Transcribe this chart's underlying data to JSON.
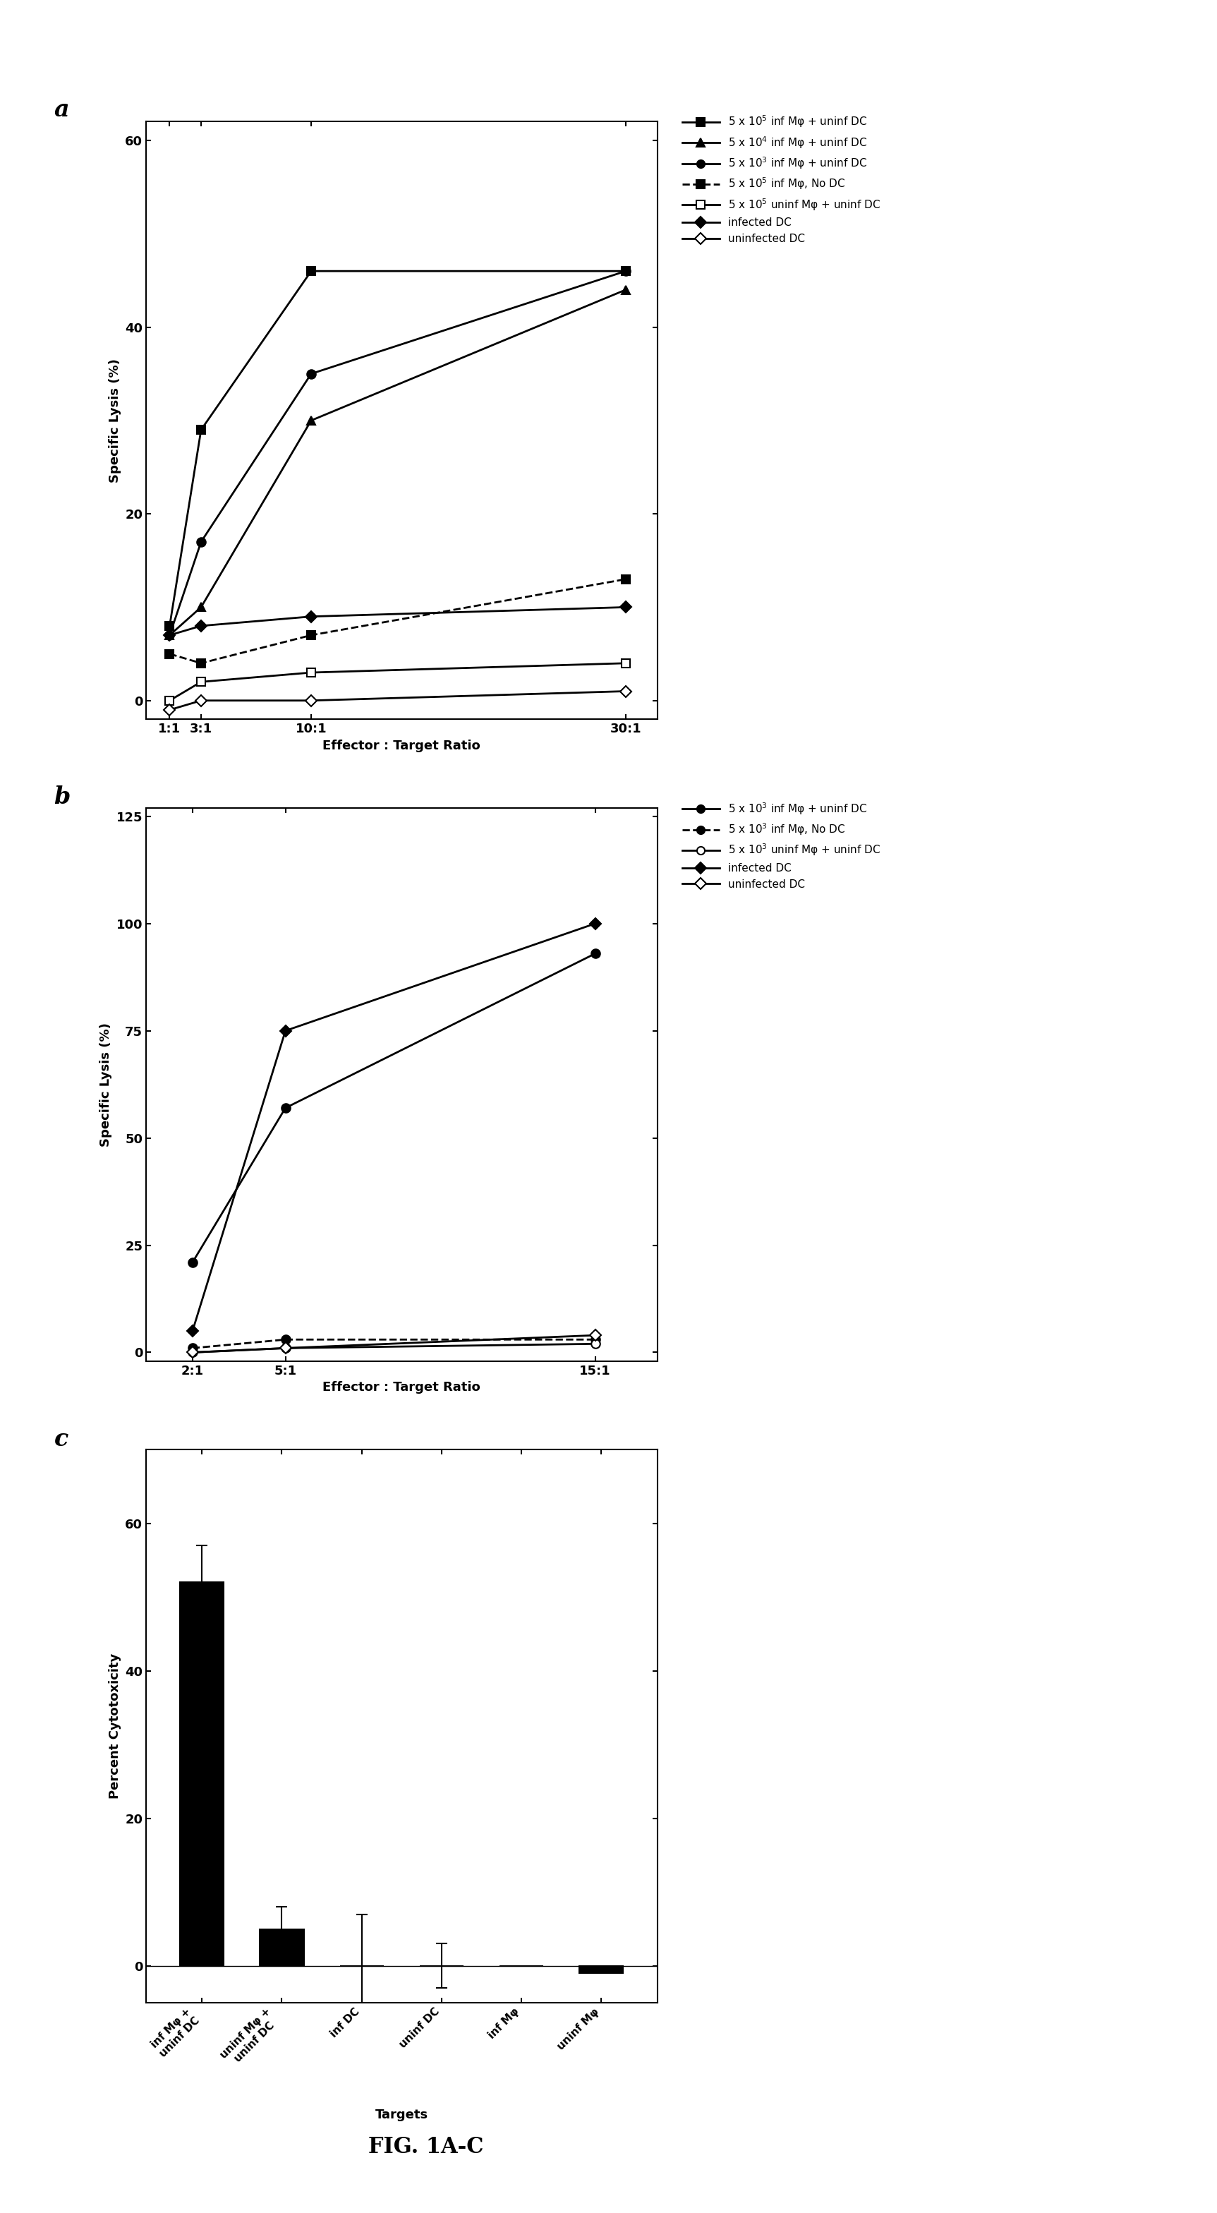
{
  "panel_a": {
    "x_labels": [
      "1:1",
      "3:1",
      "10:1",
      "30:1"
    ],
    "x_values": [
      1,
      3,
      10,
      30
    ],
    "series": [
      {
        "label": "5 x 10$^5$ inf Mφ + uninf DC",
        "y": [
          8,
          29,
          46,
          46
        ],
        "marker": "s",
        "linestyle": "-",
        "markersize": 9,
        "linewidth": 2,
        "fillstyle": "full"
      },
      {
        "label": "5 x 10$^4$ inf Mφ + uninf DC",
        "y": [
          7,
          10,
          30,
          44
        ],
        "marker": "^",
        "linestyle": "-",
        "markersize": 9,
        "linewidth": 2,
        "fillstyle": "full"
      },
      {
        "label": "5 x 10$^3$ inf Mφ + uninf DC",
        "y": [
          7,
          17,
          35,
          46
        ],
        "marker": "o",
        "linestyle": "-",
        "markersize": 9,
        "linewidth": 2,
        "fillstyle": "full"
      },
      {
        "label": "5 x 10$^5$ inf Mφ, No DC",
        "y": [
          5,
          4,
          7,
          13
        ],
        "marker": "s",
        "linestyle": "--",
        "markersize": 9,
        "linewidth": 2,
        "fillstyle": "full"
      },
      {
        "label": "5 x 10$^5$ uninf Mφ + uninf DC",
        "y": [
          0,
          2,
          3,
          4
        ],
        "marker": "s",
        "linestyle": "-",
        "markersize": 9,
        "linewidth": 2,
        "fillstyle": "none"
      },
      {
        "label": "infected DC",
        "y": [
          7,
          8,
          9,
          10
        ],
        "marker": "D",
        "linestyle": "-",
        "markersize": 8,
        "linewidth": 2,
        "fillstyle": "full"
      },
      {
        "label": "uninfected DC",
        "y": [
          -1,
          0,
          0,
          1
        ],
        "marker": "D",
        "linestyle": "-",
        "markersize": 8,
        "linewidth": 2,
        "fillstyle": "none"
      }
    ],
    "ylabel": "Specific Lysis (%)",
    "xlabel": "Effector : Target Ratio",
    "ylim": [
      -2,
      62
    ],
    "yticks": [
      0,
      20,
      40,
      60
    ]
  },
  "panel_b": {
    "x_labels": [
      "2:1",
      "5:1",
      "15:1"
    ],
    "x_values": [
      2,
      5,
      15
    ],
    "series": [
      {
        "label": "5 x 10$^3$ inf Mφ + uninf DC",
        "y": [
          21,
          57,
          93
        ],
        "marker": "o",
        "linestyle": "-",
        "markersize": 9,
        "linewidth": 2,
        "fillstyle": "full"
      },
      {
        "label": "5 x 10$^3$ inf Mφ, No DC",
        "y": [
          1,
          3,
          3
        ],
        "marker": "o",
        "linestyle": "--",
        "markersize": 9,
        "linewidth": 2,
        "fillstyle": "full"
      },
      {
        "label": "5 x 10$^3$ uninf Mφ + uninf DC",
        "y": [
          0,
          1,
          2
        ],
        "marker": "o",
        "linestyle": "-",
        "markersize": 9,
        "linewidth": 2,
        "fillstyle": "none"
      },
      {
        "label": "infected DC",
        "y": [
          5,
          75,
          100
        ],
        "marker": "D",
        "linestyle": "-",
        "markersize": 8,
        "linewidth": 2,
        "fillstyle": "full"
      },
      {
        "label": "uninfected DC",
        "y": [
          0,
          1,
          4
        ],
        "marker": "D",
        "linestyle": "-",
        "markersize": 8,
        "linewidth": 2,
        "fillstyle": "none"
      }
    ],
    "ylabel": "Specific Lysis (%)",
    "xlabel": "Effector : Target Ratio",
    "ylim": [
      -2,
      127
    ],
    "yticks": [
      0,
      25,
      50,
      75,
      100,
      125
    ]
  },
  "panel_c": {
    "categories": [
      "inf Mφ +\nuninf DC",
      "uninf Mφ +\nuninf DC",
      "inf DC",
      "uninf DC",
      "inf Mφ",
      "uninf Mφ"
    ],
    "values": [
      52,
      5,
      0,
      0,
      0,
      -1
    ],
    "errors": [
      5,
      3,
      7,
      3,
      0,
      0
    ],
    "ylabel": "Percent Cytotoxicity",
    "xlabel": "Targets",
    "ylim": [
      -5,
      70
    ],
    "yticks": [
      0,
      20,
      40,
      60
    ]
  },
  "figure_label": "FIG. 1A-C",
  "background_color": "#ffffff"
}
